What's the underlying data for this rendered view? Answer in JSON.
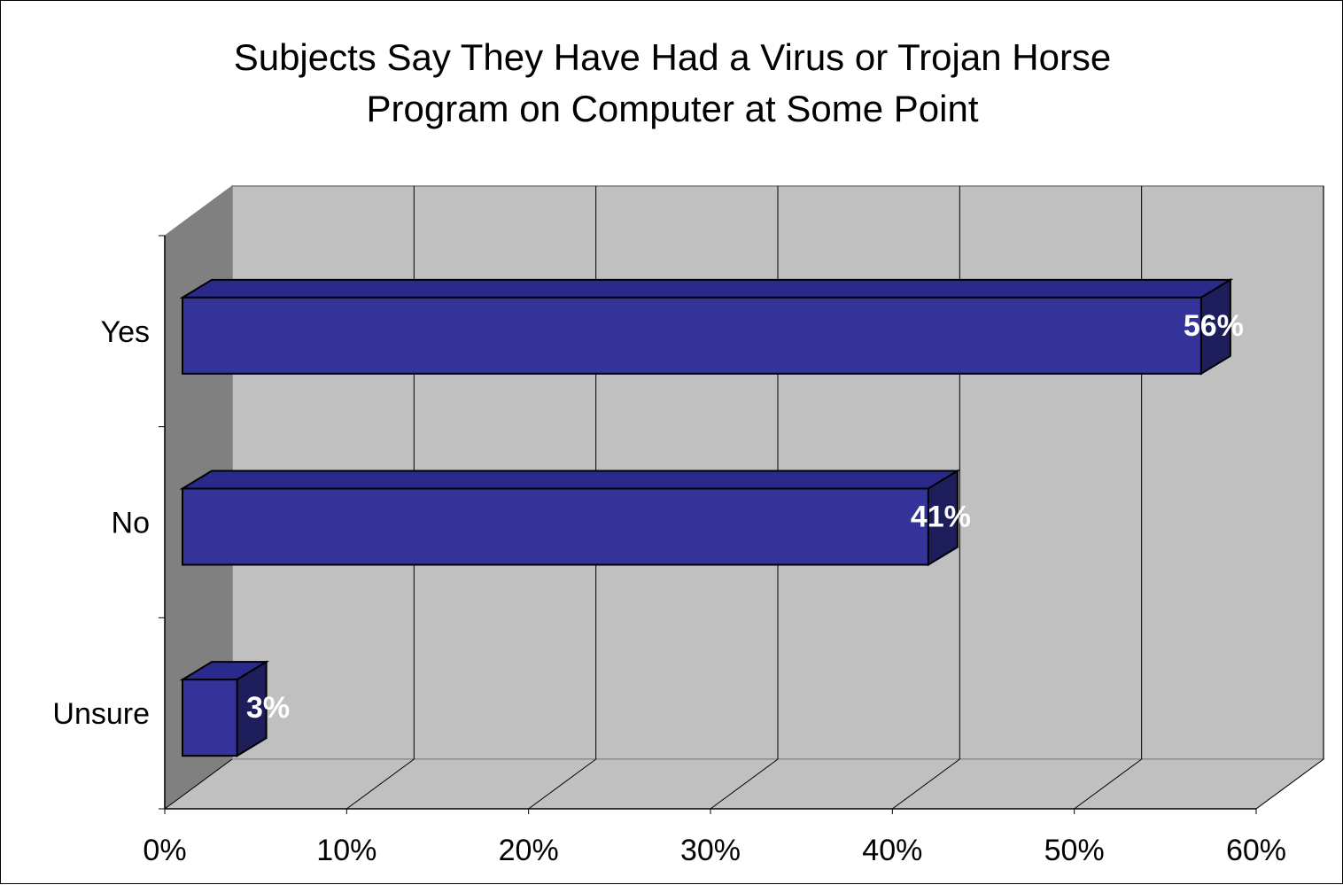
{
  "chart_data": {
    "type": "bar",
    "orientation": "horizontal",
    "style": "3d",
    "title_lines": [
      "Subjects Say They Have Had a Virus or Trojan Horse",
      "Program on Computer at Some Point"
    ],
    "categories": [
      "Yes",
      "No",
      "Unsure"
    ],
    "values": [
      56,
      41,
      3
    ],
    "value_labels": [
      "56%",
      "41%",
      "3%"
    ],
    "x_ticks": [
      "0%",
      "10%",
      "20%",
      "30%",
      "40%",
      "50%",
      "60%"
    ],
    "xlim": [
      0,
      60
    ],
    "grid": true,
    "legend": "none",
    "colors": {
      "bar_front": "#333399",
      "bar_top": "#2a2a8c",
      "bar_side": "#1e1e5c",
      "back_wall": "#c0c0c0",
      "side_wall": "#808080",
      "floor": "#c0c0c0",
      "value_label": "#ffffff"
    }
  }
}
